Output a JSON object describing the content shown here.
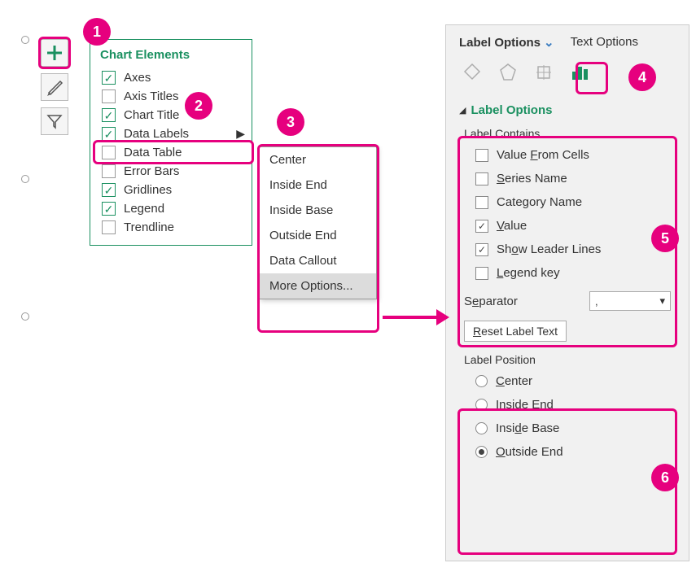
{
  "iconCol": {
    "plusColor": "#1a9060"
  },
  "flyout": {
    "title": "Chart Elements",
    "items": [
      {
        "label": "Axes",
        "checked": true
      },
      {
        "label": "Axis Titles",
        "checked": false
      },
      {
        "label": "Chart Title",
        "checked": true
      },
      {
        "label": "Data Labels",
        "checked": true,
        "sub": true
      },
      {
        "label": "Data Table",
        "checked": false
      },
      {
        "label": "Error Bars",
        "checked": false
      },
      {
        "label": "Gridlines",
        "checked": true
      },
      {
        "label": "Legend",
        "checked": true
      },
      {
        "label": "Trendline",
        "checked": false
      }
    ]
  },
  "submenu": {
    "items": [
      "Center",
      "Inside End",
      "Inside Base",
      "Outside End",
      "Data Callout",
      "More Options..."
    ],
    "hoverIndex": 5
  },
  "pane": {
    "tabActive": "Label Options",
    "tabOther": "Text Options",
    "section": "Label Options",
    "groupContains": "Label Contains",
    "contains": [
      {
        "label": "Value From Cells",
        "u": 6,
        "checked": false
      },
      {
        "label": "Series Name",
        "u": 0,
        "checked": false
      },
      {
        "label": "Category Name",
        "u": -1,
        "checked": false
      },
      {
        "label": "Value",
        "u": 0,
        "checked": true
      },
      {
        "label": "Show Leader Lines",
        "u": 2,
        "checked": true
      },
      {
        "label": "Legend key",
        "u": 0,
        "checked": false
      }
    ],
    "separatorLabel": "Separator",
    "separatorValue": ",",
    "resetLabel": "Reset Label Text",
    "groupPosition": "Label Position",
    "positions": [
      {
        "label": "Center",
        "u": 0,
        "sel": false
      },
      {
        "label": "Inside End",
        "u": 0,
        "sel": false
      },
      {
        "label": "Inside Base",
        "u": 4,
        "sel": false
      },
      {
        "label": "Outside End",
        "u": 0,
        "sel": true
      }
    ]
  },
  "badges": [
    "1",
    "2",
    "3",
    "4",
    "5",
    "6"
  ]
}
